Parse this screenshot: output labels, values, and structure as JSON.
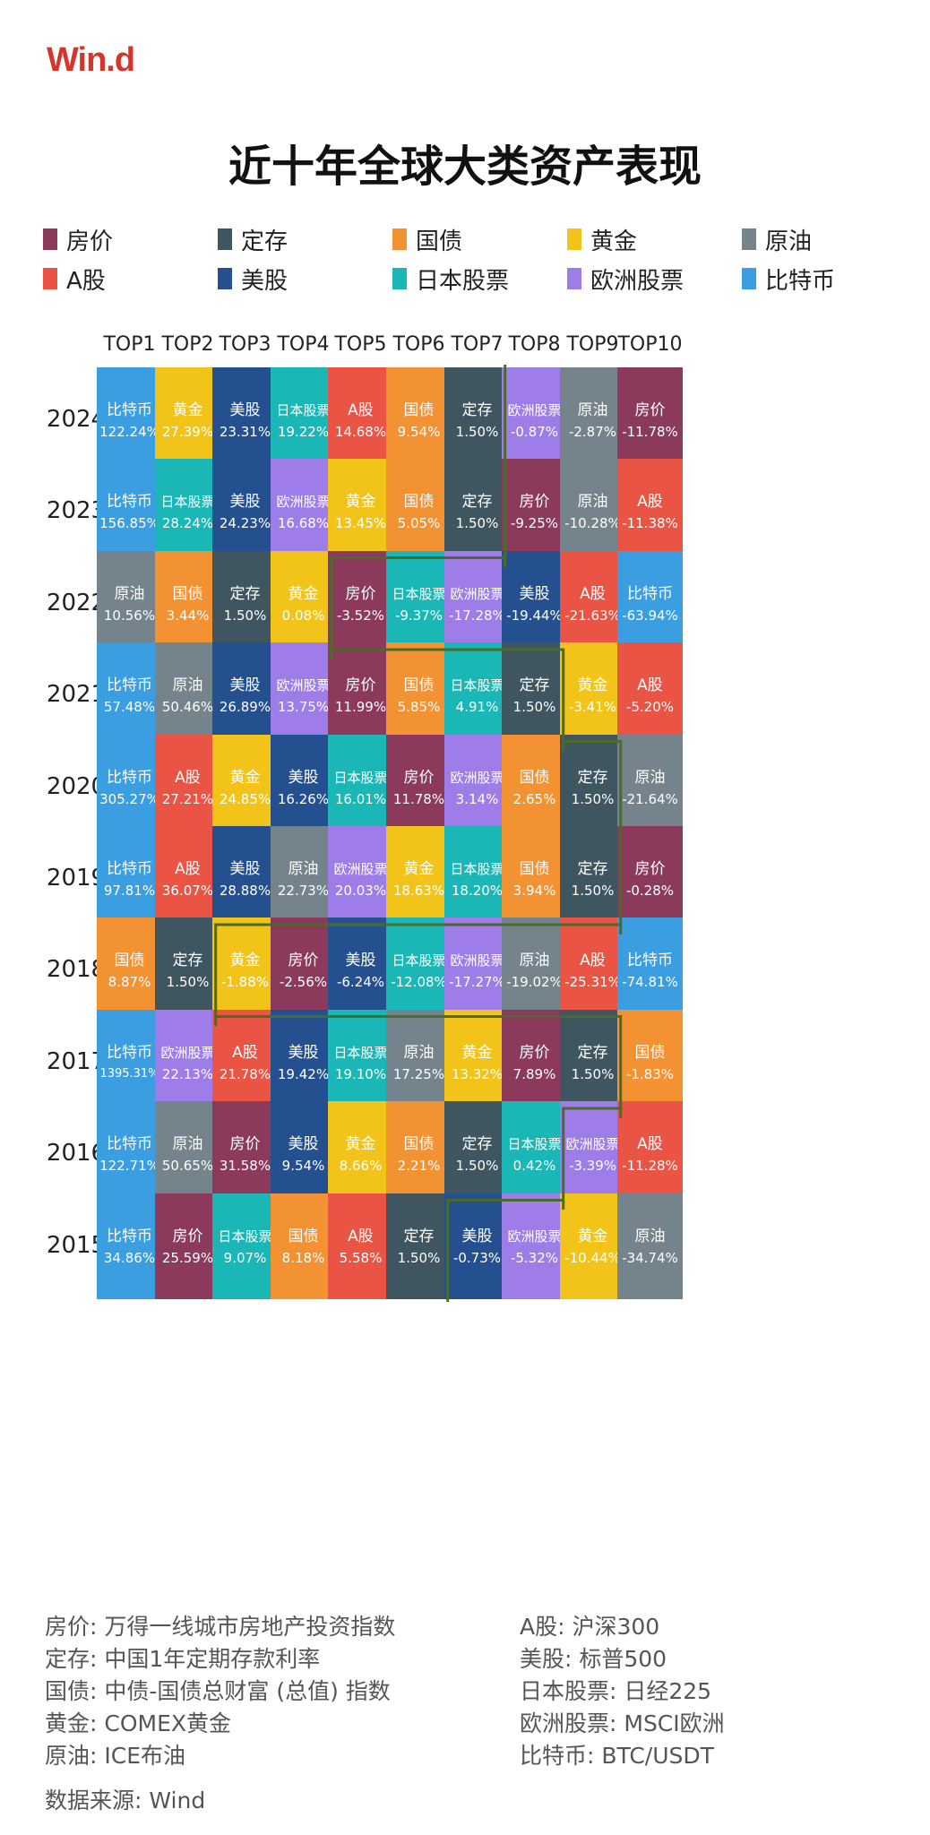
{
  "brand": "Win.d",
  "title": "近十年全球大类资产表现",
  "colors": {
    "房价": "#8b3a5c",
    "定存": "#3f5660",
    "国债": "#f39233",
    "黄金": "#f2c41a",
    "原油": "#75838d",
    "A股": "#ea5444",
    "美股": "#24508f",
    "日本股票": "#1bb7b7",
    "欧洲股票": "#9e7de8",
    "比特币": "#3a9ee0",
    "boundary": "#4a6b2a"
  },
  "legend": [
    {
      "label": "房价"
    },
    {
      "label": "定存"
    },
    {
      "label": "国债"
    },
    {
      "label": "黄金"
    },
    {
      "label": "原油"
    },
    {
      "label": "A股"
    },
    {
      "label": "美股"
    },
    {
      "label": "日本股票"
    },
    {
      "label": "欧洲股票"
    },
    {
      "label": "比特币"
    }
  ],
  "chart_data": {
    "type": "table",
    "title": "近十年全球大类资产表现",
    "columns": [
      "TOP1",
      "TOP2",
      "TOP3",
      "TOP4",
      "TOP5",
      "TOP6",
      "TOP7",
      "TOP8",
      "TOP9",
      "TOP10"
    ],
    "rows": [
      {
        "year": "2024",
        "cells": [
          {
            "asset": "比特币",
            "value": "122.24%"
          },
          {
            "asset": "黄金",
            "value": "27.39%"
          },
          {
            "asset": "美股",
            "value": "23.31%"
          },
          {
            "asset": "日本股票",
            "value": "19.22%"
          },
          {
            "asset": "A股",
            "value": "14.68%"
          },
          {
            "asset": "国债",
            "value": "9.54%"
          },
          {
            "asset": "定存",
            "value": "1.50%"
          },
          {
            "asset": "欧洲股票",
            "value": "-0.87%"
          },
          {
            "asset": "原油",
            "value": "-2.87%"
          },
          {
            "asset": "房价",
            "value": "-11.78%"
          }
        ]
      },
      {
        "year": "2023",
        "cells": [
          {
            "asset": "比特币",
            "value": "156.85%"
          },
          {
            "asset": "日本股票",
            "value": "28.24%"
          },
          {
            "asset": "美股",
            "value": "24.23%"
          },
          {
            "asset": "欧洲股票",
            "value": "16.68%"
          },
          {
            "asset": "黄金",
            "value": "13.45%"
          },
          {
            "asset": "国债",
            "value": "5.05%"
          },
          {
            "asset": "定存",
            "value": "1.50%"
          },
          {
            "asset": "房价",
            "value": "-9.25%"
          },
          {
            "asset": "原油",
            "value": "-10.28%"
          },
          {
            "asset": "A股",
            "value": "-11.38%"
          }
        ]
      },
      {
        "year": "2022",
        "cells": [
          {
            "asset": "原油",
            "value": "10.56%"
          },
          {
            "asset": "国债",
            "value": "3.44%"
          },
          {
            "asset": "定存",
            "value": "1.50%"
          },
          {
            "asset": "黄金",
            "value": "0.08%"
          },
          {
            "asset": "房价",
            "value": "-3.52%"
          },
          {
            "asset": "日本股票",
            "value": "-9.37%"
          },
          {
            "asset": "欧洲股票",
            "value": "-17.28%"
          },
          {
            "asset": "美股",
            "value": "-19.44%"
          },
          {
            "asset": "A股",
            "value": "-21.63%"
          },
          {
            "asset": "比特币",
            "value": "-63.94%"
          }
        ]
      },
      {
        "year": "2021",
        "cells": [
          {
            "asset": "比特币",
            "value": "57.48%"
          },
          {
            "asset": "原油",
            "value": "50.46%"
          },
          {
            "asset": "美股",
            "value": "26.89%"
          },
          {
            "asset": "欧洲股票",
            "value": "13.75%"
          },
          {
            "asset": "房价",
            "value": "11.99%"
          },
          {
            "asset": "国债",
            "value": "5.85%"
          },
          {
            "asset": "日本股票",
            "value": "4.91%"
          },
          {
            "asset": "定存",
            "value": "1.50%"
          },
          {
            "asset": "黄金",
            "value": "-3.41%"
          },
          {
            "asset": "A股",
            "value": "-5.20%"
          }
        ]
      },
      {
        "year": "2020",
        "cells": [
          {
            "asset": "比特币",
            "value": "305.27%"
          },
          {
            "asset": "A股",
            "value": "27.21%"
          },
          {
            "asset": "黄金",
            "value": "24.85%"
          },
          {
            "asset": "美股",
            "value": "16.26%"
          },
          {
            "asset": "日本股票",
            "value": "16.01%"
          },
          {
            "asset": "房价",
            "value": "11.78%"
          },
          {
            "asset": "欧洲股票",
            "value": "3.14%"
          },
          {
            "asset": "国债",
            "value": "2.65%"
          },
          {
            "asset": "定存",
            "value": "1.50%"
          },
          {
            "asset": "原油",
            "value": "-21.64%"
          }
        ]
      },
      {
        "year": "2019",
        "cells": [
          {
            "asset": "比特币",
            "value": "97.81%"
          },
          {
            "asset": "A股",
            "value": "36.07%"
          },
          {
            "asset": "美股",
            "value": "28.88%"
          },
          {
            "asset": "原油",
            "value": "22.73%"
          },
          {
            "asset": "欧洲股票",
            "value": "20.03%"
          },
          {
            "asset": "黄金",
            "value": "18.63%"
          },
          {
            "asset": "日本股票",
            "value": "18.20%"
          },
          {
            "asset": "国债",
            "value": "3.94%"
          },
          {
            "asset": "定存",
            "value": "1.50%"
          },
          {
            "asset": "房价",
            "value": "-0.28%"
          }
        ]
      },
      {
        "year": "2018",
        "cells": [
          {
            "asset": "国债",
            "value": "8.87%"
          },
          {
            "asset": "定存",
            "value": "1.50%"
          },
          {
            "asset": "黄金",
            "value": "-1.88%"
          },
          {
            "asset": "房价",
            "value": "-2.56%"
          },
          {
            "asset": "美股",
            "value": "-6.24%"
          },
          {
            "asset": "日本股票",
            "value": "-12.08%"
          },
          {
            "asset": "欧洲股票",
            "value": "-17.27%"
          },
          {
            "asset": "原油",
            "value": "-19.02%"
          },
          {
            "asset": "A股",
            "value": "-25.31%"
          },
          {
            "asset": "比特币",
            "value": "-74.81%"
          }
        ]
      },
      {
        "year": "2017",
        "cells": [
          {
            "asset": "比特币",
            "value": "1395.31%"
          },
          {
            "asset": "欧洲股票",
            "value": "22.13%"
          },
          {
            "asset": "A股",
            "value": "21.78%"
          },
          {
            "asset": "美股",
            "value": "19.42%"
          },
          {
            "asset": "日本股票",
            "value": "19.10%"
          },
          {
            "asset": "原油",
            "value": "17.25%"
          },
          {
            "asset": "黄金",
            "value": "13.32%"
          },
          {
            "asset": "房价",
            "value": "7.89%"
          },
          {
            "asset": "定存",
            "value": "1.50%"
          },
          {
            "asset": "国债",
            "value": "-1.83%"
          }
        ]
      },
      {
        "year": "2016",
        "cells": [
          {
            "asset": "比特币",
            "value": "122.71%"
          },
          {
            "asset": "原油",
            "value": "50.65%"
          },
          {
            "asset": "房价",
            "value": "31.58%"
          },
          {
            "asset": "美股",
            "value": "9.54%"
          },
          {
            "asset": "黄金",
            "value": "8.66%"
          },
          {
            "asset": "国债",
            "value": "2.21%"
          },
          {
            "asset": "定存",
            "value": "1.50%"
          },
          {
            "asset": "日本股票",
            "value": "0.42%"
          },
          {
            "asset": "欧洲股票",
            "value": "-3.39%"
          },
          {
            "asset": "A股",
            "value": "-11.28%"
          }
        ]
      },
      {
        "year": "2015",
        "cells": [
          {
            "asset": "比特币",
            "value": "34.86%"
          },
          {
            "asset": "房价",
            "value": "25.59%"
          },
          {
            "asset": "日本股票",
            "value": "9.07%"
          },
          {
            "asset": "国债",
            "value": "8.18%"
          },
          {
            "asset": "A股",
            "value": "5.58%"
          },
          {
            "asset": "定存",
            "value": "1.50%"
          },
          {
            "asset": "美股",
            "value": "-0.73%"
          },
          {
            "asset": "欧洲股票",
            "value": "-5.32%"
          },
          {
            "asset": "黄金",
            "value": "-10.44%"
          },
          {
            "asset": "原油",
            "value": "-34.74%"
          }
        ]
      }
    ]
  },
  "notes": [
    "房价: 万得一线城市房地产投资指数",
    "A股: 沪深300",
    "定存: 中国1年定期存款利率",
    "美股: 标普500",
    "国债: 中债-国债总财富 (总值) 指数",
    "日本股票: 日经225",
    "黄金: COMEX黄金",
    "欧洲股票: MSCI欧洲",
    "原油: ICE布油",
    "比特币: BTC/USDT"
  ],
  "source": "数据来源: Wind"
}
